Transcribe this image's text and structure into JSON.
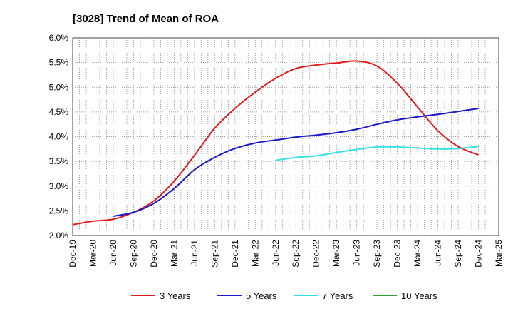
{
  "chart_data": {
    "type": "line",
    "title": "[3028]  Trend of Mean of ROA",
    "xlabel": "",
    "ylabel": "",
    "ylim": [
      2.0,
      6.0
    ],
    "y_ticks": [
      "2.0%",
      "2.5%",
      "3.0%",
      "3.5%",
      "4.0%",
      "4.5%",
      "5.0%",
      "5.5%",
      "6.0%"
    ],
    "x_ticks": [
      "Dec-19",
      "Mar-20",
      "Jun-20",
      "Sep-20",
      "Dec-20",
      "Mar-21",
      "Jun-21",
      "Sep-21",
      "Dec-21",
      "Mar-22",
      "Jun-22",
      "Sep-22",
      "Dec-22",
      "Mar-23",
      "Jun-23",
      "Sep-23",
      "Dec-23",
      "Mar-24",
      "Jun-24",
      "Sep-24",
      "Dec-24",
      "Mar-25"
    ],
    "grid": true,
    "legend_position": "bottom",
    "series": [
      {
        "name": "3 Years",
        "color": "#e41a1c",
        "points": [
          [
            0,
            2.22
          ],
          [
            1,
            2.29
          ],
          [
            2,
            2.33
          ],
          [
            3,
            2.47
          ],
          [
            4,
            2.7
          ],
          [
            5,
            3.1
          ],
          [
            6,
            3.62
          ],
          [
            7,
            4.17
          ],
          [
            8,
            4.57
          ],
          [
            9,
            4.9
          ],
          [
            10,
            5.18
          ],
          [
            11,
            5.38
          ],
          [
            12,
            5.45
          ],
          [
            13,
            5.49
          ],
          [
            14,
            5.53
          ],
          [
            15,
            5.43
          ],
          [
            16,
            5.08
          ],
          [
            17,
            4.6
          ],
          [
            18,
            4.12
          ],
          [
            19,
            3.8
          ],
          [
            20,
            3.63
          ]
        ]
      },
      {
        "name": "5 Years",
        "color": "#1a1acc",
        "points": [
          [
            2,
            2.39
          ],
          [
            3,
            2.47
          ],
          [
            4,
            2.65
          ],
          [
            5,
            2.95
          ],
          [
            6,
            3.33
          ],
          [
            7,
            3.58
          ],
          [
            8,
            3.76
          ],
          [
            9,
            3.87
          ],
          [
            10,
            3.93
          ],
          [
            11,
            3.99
          ],
          [
            12,
            4.03
          ],
          [
            13,
            4.08
          ],
          [
            14,
            4.15
          ],
          [
            15,
            4.25
          ],
          [
            16,
            4.34
          ],
          [
            17,
            4.4
          ],
          [
            18,
            4.45
          ],
          [
            19,
            4.51
          ],
          [
            20,
            4.57
          ]
        ]
      },
      {
        "name": "7 Years",
        "color": "#33e0e8",
        "points": [
          [
            10,
            3.52
          ],
          [
            11,
            3.58
          ],
          [
            12,
            3.61
          ],
          [
            13,
            3.68
          ],
          [
            14,
            3.74
          ],
          [
            15,
            3.79
          ],
          [
            16,
            3.79
          ],
          [
            17,
            3.77
          ],
          [
            18,
            3.75
          ],
          [
            19,
            3.76
          ],
          [
            20,
            3.8
          ]
        ]
      },
      {
        "name": "10 Years",
        "color": "#2ca02c",
        "points": []
      }
    ]
  }
}
